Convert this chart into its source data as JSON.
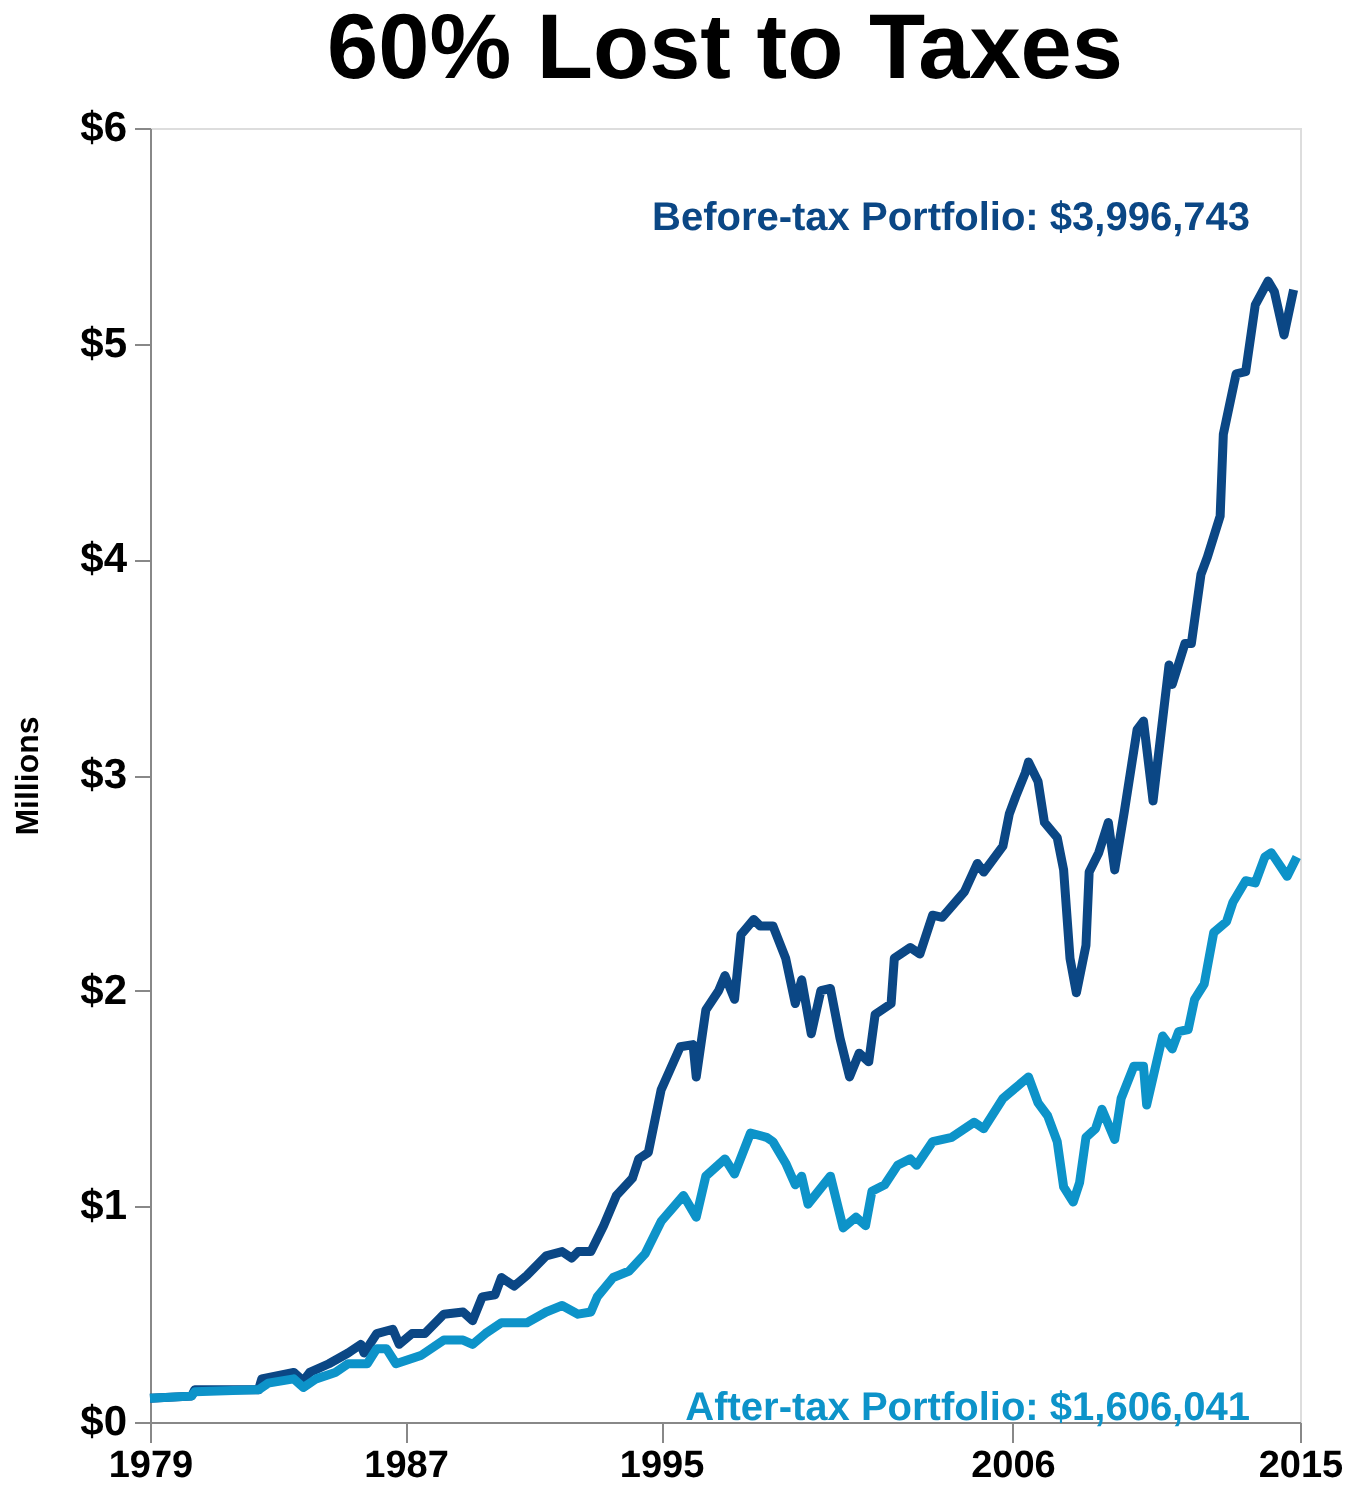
{
  "chart_data": {
    "type": "line",
    "title": "60% Lost to Taxes",
    "ylabel": "Millions",
    "xlim": [
      1979,
      2015
    ],
    "xticks": [
      1979,
      1987,
      1995,
      2006,
      2015
    ],
    "ylim": [
      0,
      6
    ],
    "yticks": [
      {
        "value": 0,
        "label": "$0"
      },
      {
        "value": 1,
        "label": "$1"
      },
      {
        "value": 2,
        "label": "$2"
      },
      {
        "value": 3,
        "label": "$3"
      },
      {
        "value": 4,
        "label": "$4"
      },
      {
        "value": 5,
        "label": "$5"
      },
      {
        "value": 6,
        "label": "$6"
      }
    ],
    "grid": false,
    "marker": "none",
    "line_style": "solid",
    "series": [
      {
        "color": "#0b4785",
        "x": [
          1979,
          1980.3,
          1980.4,
          1982.4,
          1982.5,
          1983.5,
          1983.8,
          1984.0,
          1984.6,
          1985.2,
          1985.6,
          1985.7,
          1986.1,
          1986.6,
          1986.8,
          1987.2,
          1987.6,
          1988.2,
          1988.8,
          1989.1,
          1989.4,
          1989.8,
          1990.0,
          1990.4,
          1990.8,
          1991.4,
          1991.9,
          1992.2,
          1992.4,
          1992.8,
          1993.2,
          1993.6,
          1994.1,
          1994.3,
          1994.6,
          1995,
          1995.6,
          1996.0,
          1996.1,
          1996.4,
          1996.8,
          1997.0,
          1997.3,
          1997.5,
          1997.9,
          1998.1,
          1998.5,
          1998.9,
          1999.2,
          1999.4,
          1999.7,
          2000.0,
          2000.3,
          2000.6,
          2000.9,
          2001.2,
          2001.5,
          2001.7,
          2002.2,
          2002.3,
          2002.8,
          2003.1,
          2003.5,
          2003.8,
          2004.5,
          2004.9,
          2005.1,
          2005.7,
          2005.9,
          2006.1,
          2006.4,
          2006.5,
          2006.8,
          2007.0,
          2007.4,
          2007.6,
          2007.8,
          2008.0,
          2008.3,
          2008.4,
          2008.7,
          2009.0,
          2009.2,
          2009.5,
          2009.9,
          2010.1,
          2010.4,
          2010.9,
          2011.0,
          2011.4,
          2011.6,
          2011.9,
          2012.1,
          2012.5,
          2012.6,
          2012.8,
          2013.0,
          2013.3,
          2013.6,
          2014.0,
          2014.2,
          2014.5,
          2014.8
        ],
        "values": [
          0.11,
          0.12,
          0.15,
          0.15,
          0.2,
          0.23,
          0.19,
          0.23,
          0.27,
          0.32,
          0.36,
          0.32,
          0.41,
          0.43,
          0.36,
          0.41,
          0.41,
          0.5,
          0.51,
          0.47,
          0.58,
          0.59,
          0.67,
          0.63,
          0.68,
          0.77,
          0.79,
          0.76,
          0.79,
          0.79,
          0.91,
          1.05,
          1.13,
          1.22,
          1.25,
          1.54,
          1.74,
          1.75,
          1.6,
          1.91,
          2.0,
          2.07,
          1.96,
          2.26,
          2.33,
          2.3,
          2.3,
          2.15,
          1.94,
          2.05,
          1.8,
          2.0,
          2.01,
          1.78,
          1.6,
          1.71,
          1.67,
          1.89,
          1.94,
          2.15,
          2.2,
          2.17,
          2.35,
          2.34,
          2.46,
          2.59,
          2.55,
          2.67,
          2.82,
          2.9,
          3.01,
          3.06,
          2.97,
          2.78,
          2.71,
          2.56,
          2.15,
          1.99,
          2.21,
          2.55,
          2.64,
          2.78,
          2.56,
          2.83,
          3.21,
          3.25,
          2.88,
          3.51,
          3.42,
          3.61,
          3.61,
          3.93,
          4.01,
          4.2,
          4.58,
          4.72,
          4.86,
          4.87,
          5.18,
          5.29,
          5.24,
          5.04,
          5.25
        ]
      },
      {
        "color": "#0d93c9",
        "x": [
          1979,
          1980.3,
          1980.4,
          1982.4,
          1982.7,
          1983.5,
          1983.8,
          1984.2,
          1984.8,
          1985.2,
          1985.8,
          1986.1,
          1986.4,
          1986.7,
          1987.5,
          1988.2,
          1988.8,
          1989.1,
          1989.5,
          1990.0,
          1990.8,
          1991.4,
          1991.9,
          1992.4,
          1992.8,
          1993.0,
          1993.5,
          1994.0,
          1994.5,
          1995,
          1995.7,
          1996.1,
          1996.4,
          1997.0,
          1997.3,
          1997.8,
          1998.3,
          1998.5,
          1998.9,
          1999.2,
          1999.4,
          1999.6,
          2000.3,
          2000.7,
          2001.1,
          2001.4,
          2001.6,
          2002.0,
          2002.4,
          2002.8,
          2003.0,
          2003.5,
          2004.1,
          2004.8,
          2005.1,
          2005.7,
          2006.1,
          2006.5,
          2006.8,
          2007.1,
          2007.4,
          2007.6,
          2007.9,
          2008.1,
          2008.3,
          2008.6,
          2008.8,
          2009.2,
          2009.4,
          2009.8,
          2010.1,
          2010.2,
          2010.7,
          2011.0,
          2011.2,
          2011.5,
          2011.7,
          2012.0,
          2012.3,
          2012.7,
          2012.9,
          2013.3,
          2013.6,
          2013.9,
          2014.1,
          2014.6,
          2014.9
        ],
        "values": [
          0.11,
          0.12,
          0.14,
          0.15,
          0.18,
          0.2,
          0.16,
          0.2,
          0.23,
          0.27,
          0.27,
          0.34,
          0.34,
          0.27,
          0.31,
          0.38,
          0.38,
          0.36,
          0.41,
          0.46,
          0.46,
          0.51,
          0.54,
          0.5,
          0.51,
          0.58,
          0.67,
          0.7,
          0.78,
          0.93,
          1.05,
          0.95,
          1.14,
          1.22,
          1.15,
          1.34,
          1.32,
          1.3,
          1.2,
          1.1,
          1.14,
          1.01,
          1.14,
          0.9,
          0.95,
          0.91,
          1.07,
          1.1,
          1.19,
          1.22,
          1.19,
          1.3,
          1.32,
          1.39,
          1.36,
          1.5,
          1.55,
          1.6,
          1.48,
          1.42,
          1.3,
          1.09,
          1.02,
          1.11,
          1.32,
          1.36,
          1.45,
          1.31,
          1.5,
          1.65,
          1.65,
          1.47,
          1.79,
          1.73,
          1.81,
          1.82,
          1.96,
          2.03,
          2.27,
          2.32,
          2.41,
          2.51,
          2.5,
          2.62,
          2.64,
          2.53,
          2.62
        ]
      }
    ],
    "annotations": [
      "Before-tax Portfolio: $3,996,743",
      "After-tax Portfolio: $1,606,041"
    ]
  }
}
